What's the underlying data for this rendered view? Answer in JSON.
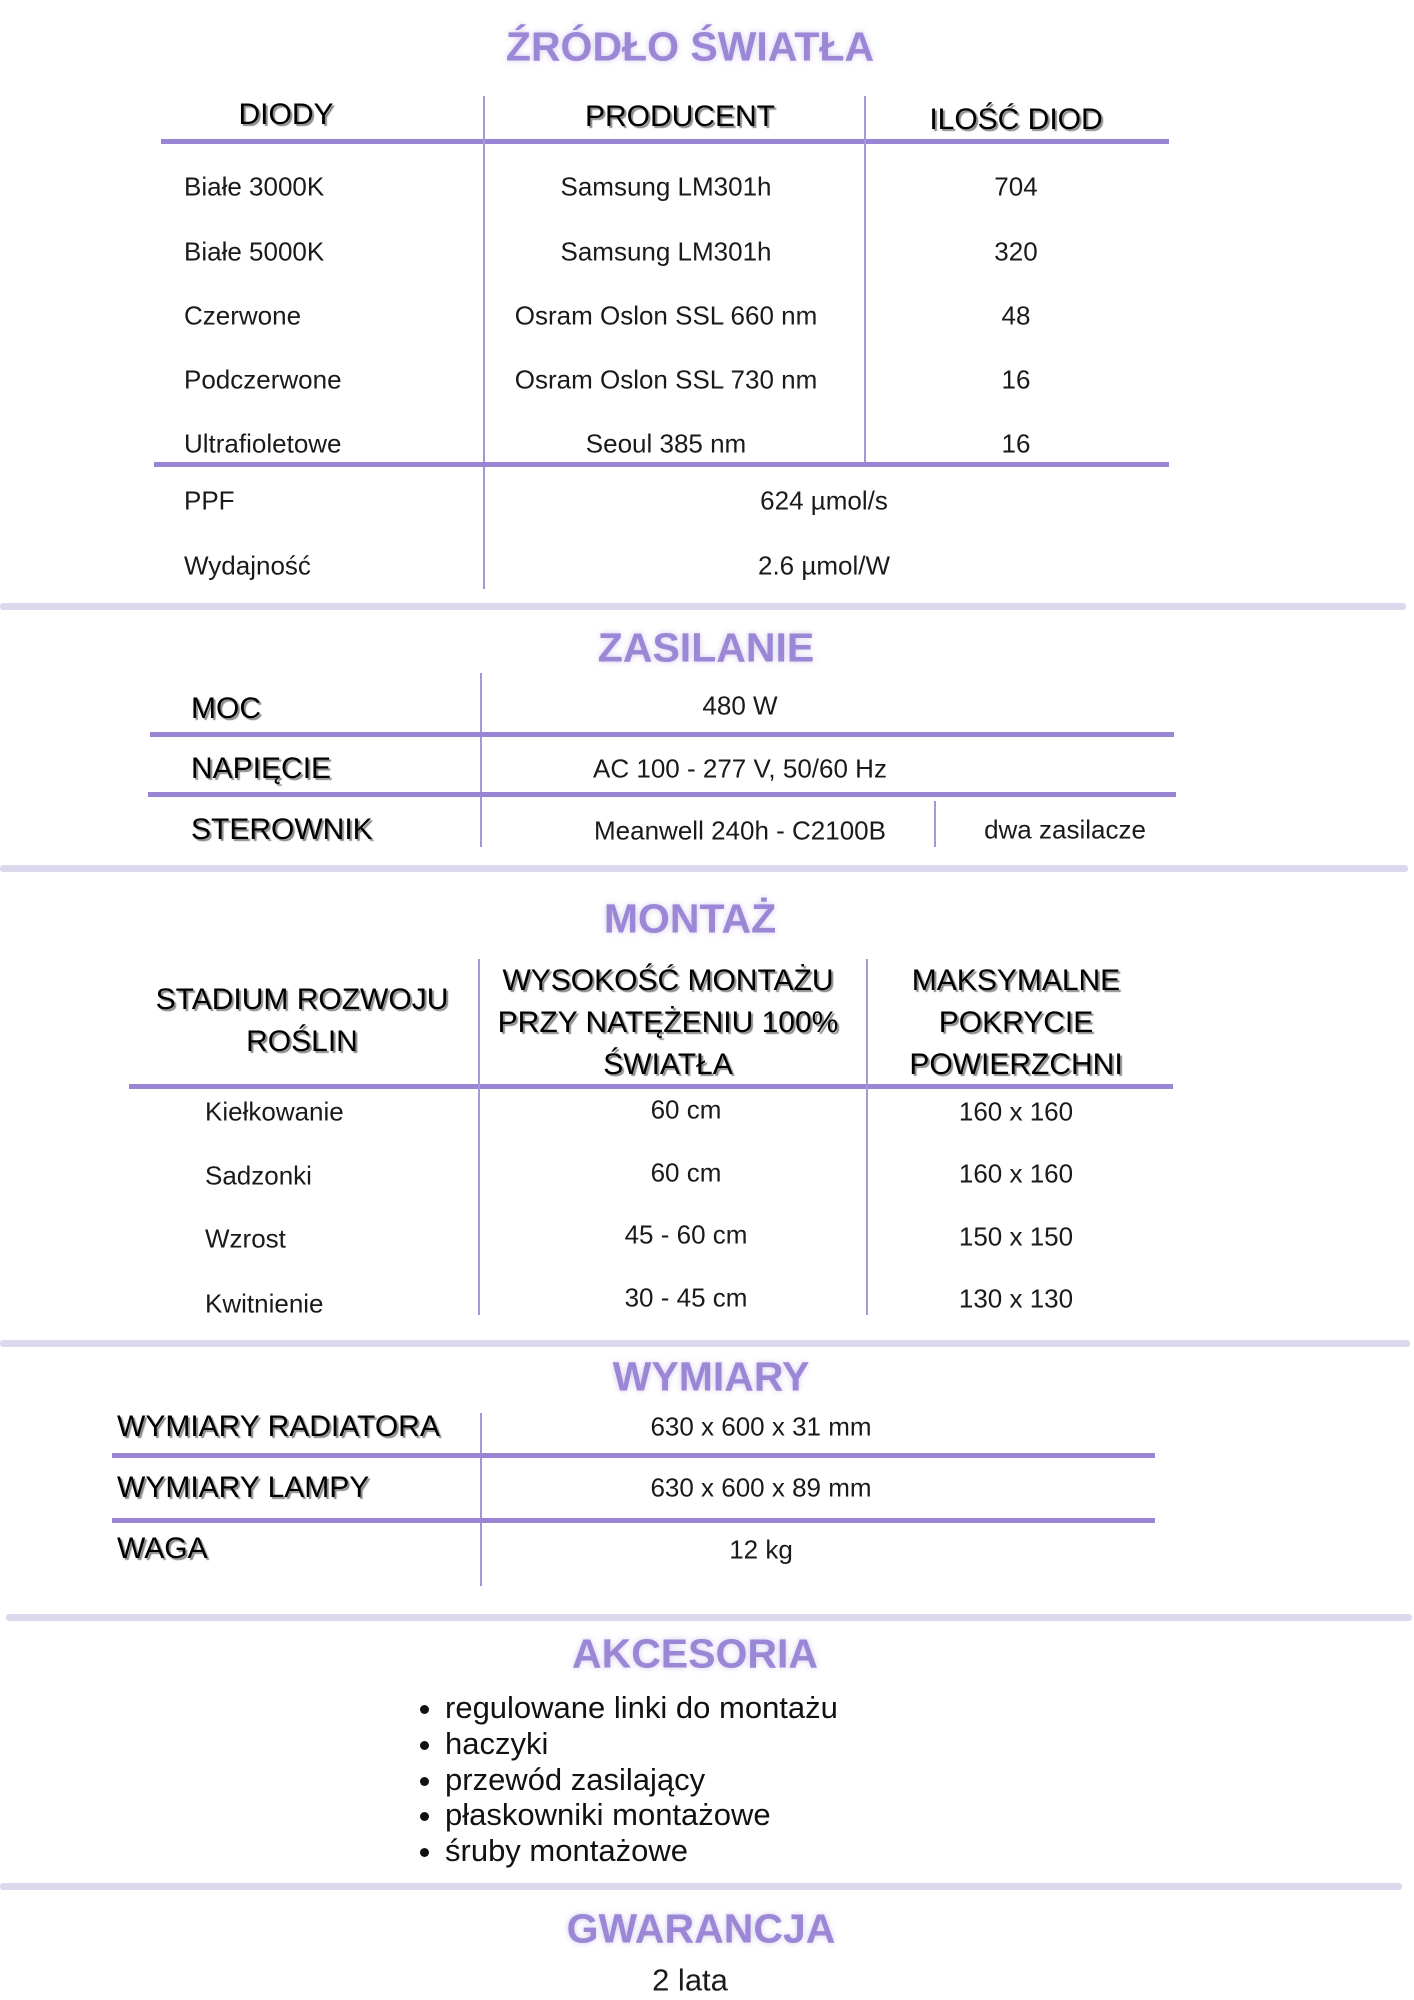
{
  "colors": {
    "accent": "#9b87d6",
    "rule": "#9a85d4",
    "separator": "#dcd8ee"
  },
  "light_source": {
    "title": "ŹRÓDŁO ŚWIATŁA",
    "headers": [
      "DIODY",
      "PRODUCENT",
      "ILOŚĆ DIOD"
    ],
    "rows": [
      [
        "Białe 3000K",
        "Samsung LM301h",
        "704"
      ],
      [
        "Białe 5000K",
        "Samsung LM301h",
        "320"
      ],
      [
        "Czerwone",
        "Osram Oslon SSL 660 nm",
        "48"
      ],
      [
        "Podczerwone",
        "Osram Oslon SSL 730 nm",
        "16"
      ],
      [
        "Ultrafioletowe",
        "Seoul 385 nm",
        "16"
      ]
    ],
    "summary": [
      [
        "PPF",
        "624 µmol/s"
      ],
      [
        "Wydajność",
        "2.6 µmol/W"
      ]
    ]
  },
  "power": {
    "title": "ZASILANIE",
    "rows": [
      [
        "MOC",
        "480 W"
      ],
      [
        "NAPIĘCIE",
        "AC 100 - 277 V, 50/60 Hz"
      ],
      [
        "STEROWNIK",
        "Meanwell 240h - C2100B",
        "dwa zasilacze"
      ]
    ]
  },
  "mounting": {
    "title": "MONTAŻ",
    "headers": [
      "STADIUM ROZWOJU\nROŚLIN",
      "WYSOKOŚĆ MONTAŻU\nPRZY NATĘŻENIU 100%\nŚWIATŁA",
      "MAKSYMALNE\nPOKRYCIE\nPOWIERZCHNI"
    ],
    "rows": [
      [
        "Kiełkowanie",
        "60 cm",
        "160 x 160"
      ],
      [
        "Sadzonki",
        "60 cm",
        "160 x 160"
      ],
      [
        "Wzrost",
        "45 - 60 cm",
        "150 x 150"
      ],
      [
        "Kwitnienie",
        "30 - 45 cm",
        "130 x 130"
      ]
    ]
  },
  "dimensions": {
    "title": "WYMIARY",
    "rows": [
      [
        "WYMIARY RADIATORA",
        "630 x 600 x 31 mm"
      ],
      [
        "WYMIARY LAMPY",
        "630 x 600 x 89 mm"
      ],
      [
        "WAGA",
        "12 kg"
      ]
    ]
  },
  "accessories": {
    "title": "AKCESORIA",
    "items": [
      "regulowane linki do montażu",
      "haczyki",
      "przewód zasilający",
      "płaskowniki montażowe",
      "śruby montażowe"
    ]
  },
  "warranty": {
    "title": "GWARANCJA",
    "value": "2 lata"
  }
}
